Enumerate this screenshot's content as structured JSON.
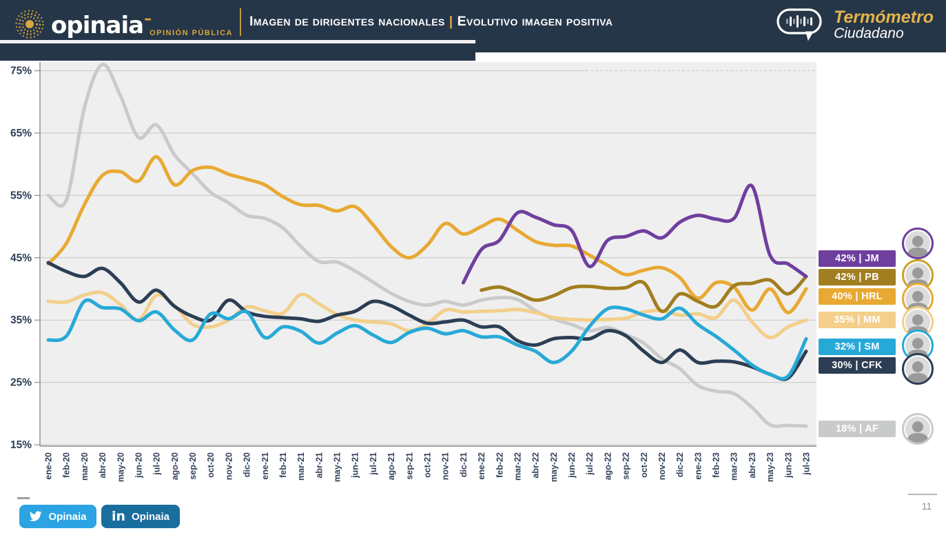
{
  "header": {
    "brand": "opinaia",
    "brand_dash": "–",
    "brand_sub": "OPINIÓN PÚBLICA",
    "title_left": "Imagen de dirigentes nacionales",
    "title_sep": "|",
    "title_right": "Evolutivo imagen positiva",
    "thermo_line1": "Termómetro",
    "thermo_line2": "Ciudadano",
    "colors": {
      "bar_bg": "#263649",
      "gold": "#D9A63C"
    }
  },
  "chart_data": {
    "type": "line",
    "title": "Imagen de dirigentes nacionales | Evolutivo imagen positiva",
    "xlabel": "",
    "ylabel": "",
    "ylim": [
      15,
      78
    ],
    "grid": true,
    "legend_position": "right",
    "ytick_labels": [
      "75%",
      "65%",
      "55%",
      "45%",
      "35%",
      "25%",
      "15%"
    ],
    "ytick_values": [
      75,
      65,
      55,
      45,
      35,
      25,
      15
    ],
    "x": [
      "ene-20",
      "feb-20",
      "mar-20",
      "abr-20",
      "may-20",
      "jun-20",
      "jul-20",
      "ago-20",
      "sep-20",
      "oct-20",
      "nov-20",
      "dic-20",
      "ene-21",
      "feb-21",
      "mar-21",
      "abr-21",
      "may-21",
      "jun-21",
      "jul-21",
      "ago-21",
      "sep-21",
      "oct-21",
      "nov-21",
      "dic-21",
      "ene-22",
      "feb-22",
      "mar-22",
      "abr-22",
      "may-22",
      "jun-22",
      "jul-22",
      "ago-22",
      "sep-22",
      "oct-22",
      "nov-22",
      "dic-22",
      "ene-23",
      "feb-23",
      "mar-23",
      "abr-23",
      "may-23",
      "jun-23",
      "jul-23"
    ],
    "series": [
      {
        "code": "JM",
        "end_label": "42% | JM",
        "end_value": 42,
        "color": "#6F3F9E",
        "values": [
          null,
          null,
          null,
          null,
          null,
          null,
          null,
          null,
          null,
          null,
          null,
          null,
          null,
          null,
          null,
          null,
          null,
          null,
          null,
          null,
          null,
          null,
          null,
          41,
          46.3,
          47.8,
          52.2,
          51.5,
          50.3,
          49.4,
          43.6,
          47.8,
          48.4,
          49.3,
          48.2,
          50.7,
          51.8,
          51.2,
          51.3,
          56.5,
          45.4,
          44,
          42
        ]
      },
      {
        "code": "PB",
        "end_label": "42% | PB",
        "end_value": 42,
        "color": "#A17E1F",
        "values": [
          null,
          null,
          null,
          null,
          null,
          null,
          null,
          null,
          null,
          null,
          null,
          null,
          null,
          null,
          null,
          null,
          null,
          null,
          null,
          null,
          null,
          null,
          null,
          null,
          39.8,
          40.3,
          39.3,
          38.2,
          38.9,
          40.2,
          40.4,
          40.1,
          40.2,
          41,
          36.4,
          39.2,
          38,
          37.2,
          40.5,
          40.9,
          41.4,
          39.2,
          42
        ]
      },
      {
        "code": "HRL",
        "end_label": "40% | HRL",
        "end_value": 40,
        "color": "#E8A933",
        "values": [
          44,
          47.3,
          53.5,
          58.2,
          58.8,
          57.3,
          61.2,
          56.7,
          59,
          59.5,
          58.4,
          57.6,
          56.7,
          54.8,
          53.5,
          53.4,
          52.5,
          53.2,
          50.3,
          46.8,
          45,
          47,
          50.5,
          48.8,
          50,
          51.2,
          49.4,
          47.6,
          47,
          46.9,
          45.4,
          43.8,
          42.3,
          43,
          43.4,
          41.8,
          38.5,
          41,
          40.3,
          36.6,
          40,
          36.2,
          40
        ]
      },
      {
        "code": "MM",
        "end_label": "35% | MM",
        "end_value": 35,
        "color": "#F3CF8B",
        "values": [
          38,
          37.9,
          39,
          39.4,
          37.5,
          35,
          39,
          37.3,
          34.3,
          33.9,
          35,
          37.1,
          36.5,
          36.1,
          39.1,
          37.6,
          35.9,
          35,
          34.7,
          34.4,
          33.3,
          34.4,
          36.6,
          36.3,
          36.4,
          36.5,
          36.7,
          36.2,
          35.4,
          35.1,
          35,
          35.1,
          35.3,
          36.3,
          36.5,
          35.8,
          36,
          35.4,
          38.2,
          34.7,
          32.2,
          33.9,
          35
        ]
      },
      {
        "code": "SM",
        "end_label": "32% | SM",
        "end_value": 32,
        "color": "#27A9D8",
        "values": [
          31.8,
          32.4,
          38,
          37,
          36.8,
          34.9,
          36.3,
          33.4,
          31.8,
          36,
          35.2,
          36.3,
          32.2,
          33.9,
          33.2,
          31.3,
          32.9,
          34.1,
          32.6,
          31.4,
          33,
          33.7,
          32.8,
          33.3,
          32.3,
          32.3,
          31,
          30,
          28.2,
          30,
          34,
          36.8,
          36.8,
          35.8,
          35.2,
          36.9,
          34.3,
          32.4,
          30.2,
          27.8,
          26.3,
          26,
          32
        ]
      },
      {
        "code": "CFK",
        "end_label": "30% | CFK",
        "end_value": 30,
        "color": "#2C3E54",
        "values": [
          44.2,
          42.8,
          42,
          43.3,
          41,
          37.9,
          39.8,
          37.2,
          35.6,
          35,
          38.2,
          36.3,
          35.6,
          35.4,
          35.2,
          34.8,
          35.8,
          36.4,
          38,
          37.3,
          35.8,
          34.5,
          34.7,
          35,
          33.9,
          33.9,
          31.7,
          31,
          32,
          32.2,
          32,
          33.3,
          32.5,
          30,
          28.2,
          30.2,
          28.2,
          28.4,
          28.3,
          27.5,
          26.3,
          25.7,
          30
        ]
      },
      {
        "code": "AF",
        "end_label": "18% | AF",
        "end_value": 18,
        "color": "#C9CBCA",
        "values": [
          55,
          54.2,
          69,
          76,
          71,
          64.3,
          66.3,
          61.5,
          58.5,
          55.5,
          53.8,
          51.8,
          51.3,
          49.8,
          46.8,
          44.4,
          44.3,
          42.9,
          41.1,
          39.3,
          38,
          37.4,
          38,
          37.4,
          38.2,
          38.6,
          38.3,
          36.5,
          35.2,
          34.3,
          33.3,
          33.8,
          32.7,
          31.3,
          28.8,
          27.2,
          24.5,
          23.6,
          23.2,
          21,
          18.2,
          18.1,
          18
        ]
      }
    ]
  },
  "footer": {
    "social": [
      {
        "network": "twitter",
        "label": "Opinaia"
      },
      {
        "network": "linkedin",
        "label": "Opinaia",
        "icon_text": "in"
      }
    ],
    "page_number": "11"
  }
}
